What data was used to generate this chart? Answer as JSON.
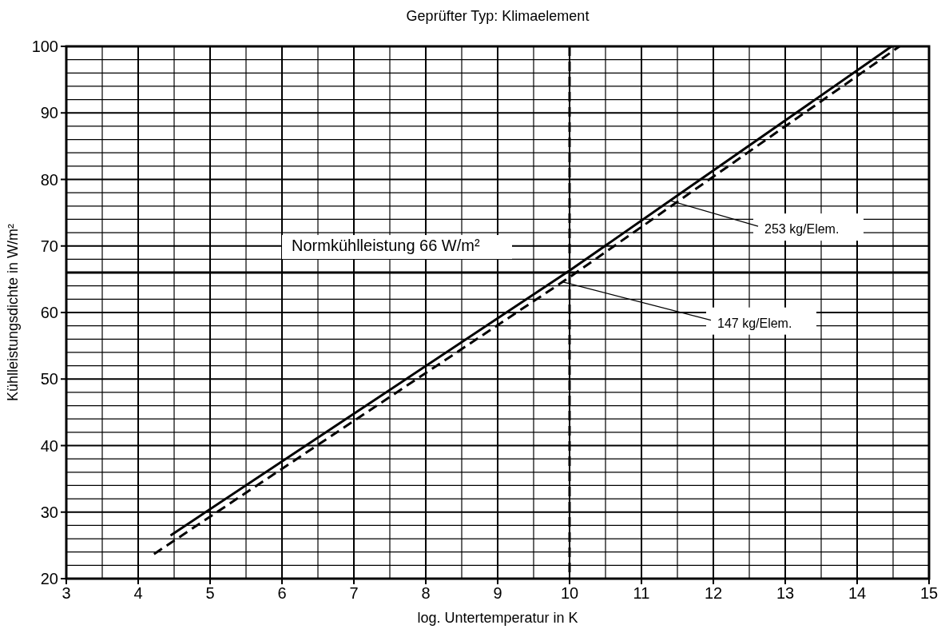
{
  "chart_data": {
    "type": "line",
    "title": "Geprüfter Typ: Klimaelement",
    "xlabel": "log. Untertemperatur in K",
    "ylabel": "Kühlleistungsdichte in W/m²",
    "xlim": [
      3,
      15
    ],
    "ylim": [
      20,
      100
    ],
    "xticks": [
      3,
      {
        "value": 3.5,
        "label": null
      },
      4,
      {
        "value": 4.5,
        "label": null
      },
      5,
      {
        "value": 5.5,
        "label": null
      },
      6,
      {
        "value": 6.5,
        "label": null
      },
      7,
      {
        "value": 7.5,
        "label": null
      },
      8,
      {
        "value": 8.5,
        "label": null
      },
      9,
      {
        "value": 9.5,
        "label": null
      },
      10,
      {
        "value": 10.5,
        "label": null
      },
      11,
      {
        "value": 11.5,
        "label": null
      },
      12,
      {
        "value": 12.5,
        "label": null
      },
      13,
      {
        "value": 13.5,
        "label": null
      },
      14,
      {
        "value": 14.5,
        "label": null
      },
      15
    ],
    "yticks": [
      20,
      {
        "value": 22,
        "label": null
      },
      {
        "value": 24,
        "label": null
      },
      {
        "value": 26,
        "label": null
      },
      {
        "value": 28,
        "label": null
      },
      30,
      {
        "value": 32,
        "label": null
      },
      {
        "value": 34,
        "label": null
      },
      {
        "value": 36,
        "label": null
      },
      {
        "value": 38,
        "label": null
      },
      40,
      {
        "value": 42,
        "label": null
      },
      {
        "value": 44,
        "label": null
      },
      {
        "value": 46,
        "label": null
      },
      {
        "value": 48,
        "label": null
      },
      50,
      {
        "value": 52,
        "label": null
      },
      {
        "value": 54,
        "label": null
      },
      {
        "value": 56,
        "label": null
      },
      {
        "value": 58,
        "label": null
      },
      60,
      {
        "value": 62,
        "label": null
      },
      {
        "value": 64,
        "label": null
      },
      {
        "value": 66,
        "label": null
      },
      {
        "value": 68,
        "label": null
      },
      70,
      {
        "value": 72,
        "label": null
      },
      {
        "value": 74,
        "label": null
      },
      {
        "value": 76,
        "label": null
      },
      {
        "value": 78,
        "label": null
      },
      80,
      {
        "value": 82,
        "label": null
      },
      {
        "value": 84,
        "label": null
      },
      {
        "value": 86,
        "label": null
      },
      {
        "value": 88,
        "label": null
      },
      90,
      {
        "value": 92,
        "label": null
      },
      {
        "value": 94,
        "label": null
      },
      {
        "value": 96,
        "label": null
      },
      {
        "value": 98,
        "label": null
      },
      100
    ],
    "grid": true,
    "marker": "none",
    "series": [
      {
        "color": "#000000",
        "line_style": "solid",
        "x": [
          4.45,
          10,
          14.48
        ],
        "values": [
          26.5,
          66.3,
          100
        ]
      },
      {
        "color": "#000000",
        "line_style": "dashed",
        "x": [
          4.22,
          10,
          14.59
        ],
        "values": [
          23.7,
          65.3,
          100
        ]
      }
    ],
    "ref_lines": [
      {
        "axis": "y",
        "value": 66,
        "label": "Normkühlleistung 66 W/m²",
        "color": "#000000",
        "line_style": "solid"
      },
      {
        "axis": "x",
        "value": 10,
        "label": null,
        "color": "#000000",
        "line_style": "dashed"
      }
    ],
    "annotations": [
      {
        "text": "253 kg/Elem.",
        "x": 11.4,
        "y": 76.8
      },
      {
        "text": "147 kg/Elem.",
        "x": 9.9,
        "y": 64.6
      }
    ]
  }
}
